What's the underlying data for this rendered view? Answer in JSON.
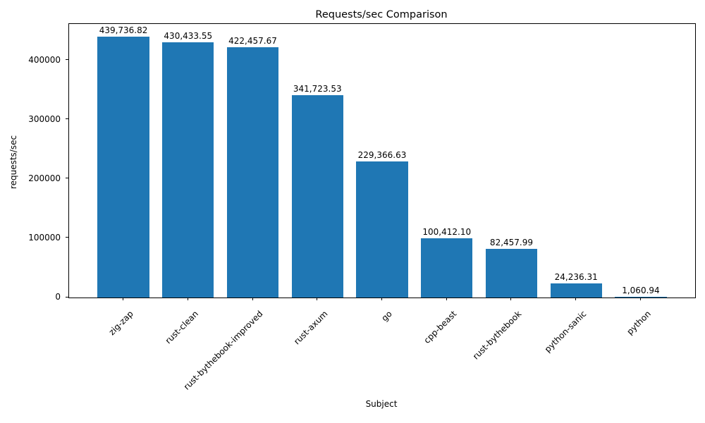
{
  "chart_data": {
    "type": "bar",
    "title": "Requests/sec Comparison",
    "xlabel": "Subject",
    "ylabel": "requests/sec",
    "categories": [
      "zig-zap",
      "rust-clean",
      "rust-bythebook-improved",
      "rust-axum",
      "go",
      "cpp-beast",
      "rust-bythebook",
      "python-sanic",
      "python"
    ],
    "values": [
      439736.82,
      430433.55,
      422457.67,
      341723.53,
      229366.63,
      100412.1,
      82457.99,
      24236.31,
      1060.94
    ],
    "value_labels": [
      "439,736.82",
      "430,433.55",
      "422,457.67",
      "341,723.53",
      "229,366.63",
      "100,412.10",
      "82,457.99",
      "24,236.31",
      "1,060.94"
    ],
    "yticks": [
      0,
      100000,
      200000,
      300000,
      400000
    ],
    "ytick_labels": [
      "0",
      "100000",
      "200000",
      "300000",
      "400000"
    ],
    "ylim": [
      0,
      461723.66
    ],
    "bar_color": "#1f77b4",
    "grid": false,
    "legend_position": "none"
  }
}
